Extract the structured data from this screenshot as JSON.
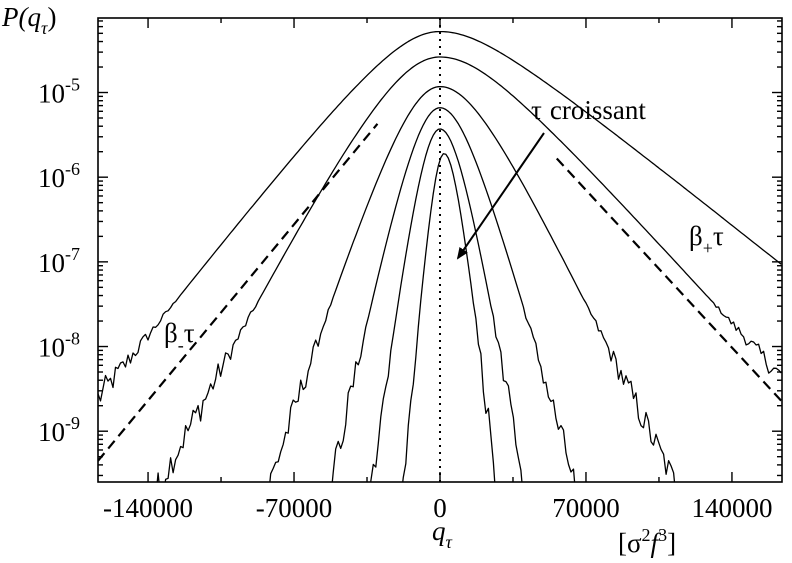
{
  "chart_data": {
    "type": "line",
    "ylabel": {
      "main": "P(q",
      "sub": "τ",
      "close": ")"
    },
    "xlabel": {
      "main": "q",
      "sub": "τ"
    },
    "xunit": {
      "open": "[σ",
      "sup1": "2",
      "mid": "f",
      "sup2": "3",
      "close": "]"
    },
    "x_range": [
      -164000,
      164000
    ],
    "y_log_range": [
      -9.6,
      -4.12
    ],
    "y_scale": "log",
    "x_ticks": [
      {
        "value": -140000,
        "label": "-140000"
      },
      {
        "value": -70000,
        "label": "-70000"
      },
      {
        "value": 0,
        "label": "0"
      },
      {
        "value": 70000,
        "label": "70000"
      },
      {
        "value": 140000,
        "label": "140000"
      }
    ],
    "y_ticks": [
      {
        "exp": -5,
        "base": "10",
        "sup": "-5"
      },
      {
        "exp": -6,
        "base": "10",
        "sup": "-6"
      },
      {
        "exp": -7,
        "base": "10",
        "sup": "-7"
      },
      {
        "exp": -8,
        "base": "10",
        "sup": "-8"
      },
      {
        "exp": -9,
        "base": "10",
        "sup": "-9"
      }
    ],
    "series": [
      {
        "peak_x": 0,
        "peak_log": -4.28,
        "left_cut": 2000,
        "left_w": 29000,
        "right_w": 27000,
        "slopeL": 3.15e-05,
        "slopeR": 1.98e-05,
        "bottomL": -9.5,
        "bottomR": -8.72
      },
      {
        "peak_x": 0,
        "peak_log": -4.58,
        "left_cut": 2000,
        "left_w": 32000,
        "right_w": 28000,
        "slopeL": 4.74e-05,
        "slopeR": 2.74e-05,
        "bottomL": -9.6,
        "bottomR": -9.6
      },
      {
        "peak_x": 0,
        "peak_log": -4.93,
        "left_cut": 2000,
        "left_w": 24000,
        "right_w": 24000,
        "slopeL": 7.65e-05,
        "slopeR": 5.14e-05,
        "bottomL": -9.6,
        "bottomR": -9.6
      },
      {
        "peak_x": 0,
        "peak_log": -5.18,
        "left_cut": 2000,
        "left_w": 18000,
        "right_w": 17000,
        "slopeL": 0.000119,
        "slopeR": 8.9e-05,
        "bottomL": -9.6,
        "bottomR": -9.6
      },
      {
        "peak_x": 0,
        "peak_log": -5.43,
        "left_cut": 2000,
        "left_w": 13000,
        "right_w": 13000,
        "slopeL": 0.000188,
        "slopeR": 0.000143,
        "bottomL": -9.6,
        "bottomR": -9.6
      },
      {
        "peak_x": 2000,
        "peak_log": -5.72,
        "left_cut": 1000,
        "left_w": 7500,
        "right_w": 7500,
        "slopeL": 0.00029,
        "slopeR": 0.00021,
        "bottomL": -9.6,
        "bottomR": -9.6
      }
    ],
    "reference_lines": [
      {
        "name": "beta_minus",
        "x1": -164000,
        "log1": -9.35,
        "x2": -30000,
        "log2": -5.37
      },
      {
        "name": "beta_plus",
        "x1": 56000,
        "log1": -5.78,
        "x2": 164000,
        "log2": -8.65
      }
    ],
    "center_line_x": 0,
    "annotations": {
      "tau_croissant": {
        "tau": "τ",
        "text": "croissant"
      },
      "beta_plus": {
        "beta": "β",
        "sub": "+",
        "tau": "τ"
      },
      "beta_minus": {
        "beta": "β",
        "sub": "-",
        "tau": "τ"
      }
    }
  }
}
